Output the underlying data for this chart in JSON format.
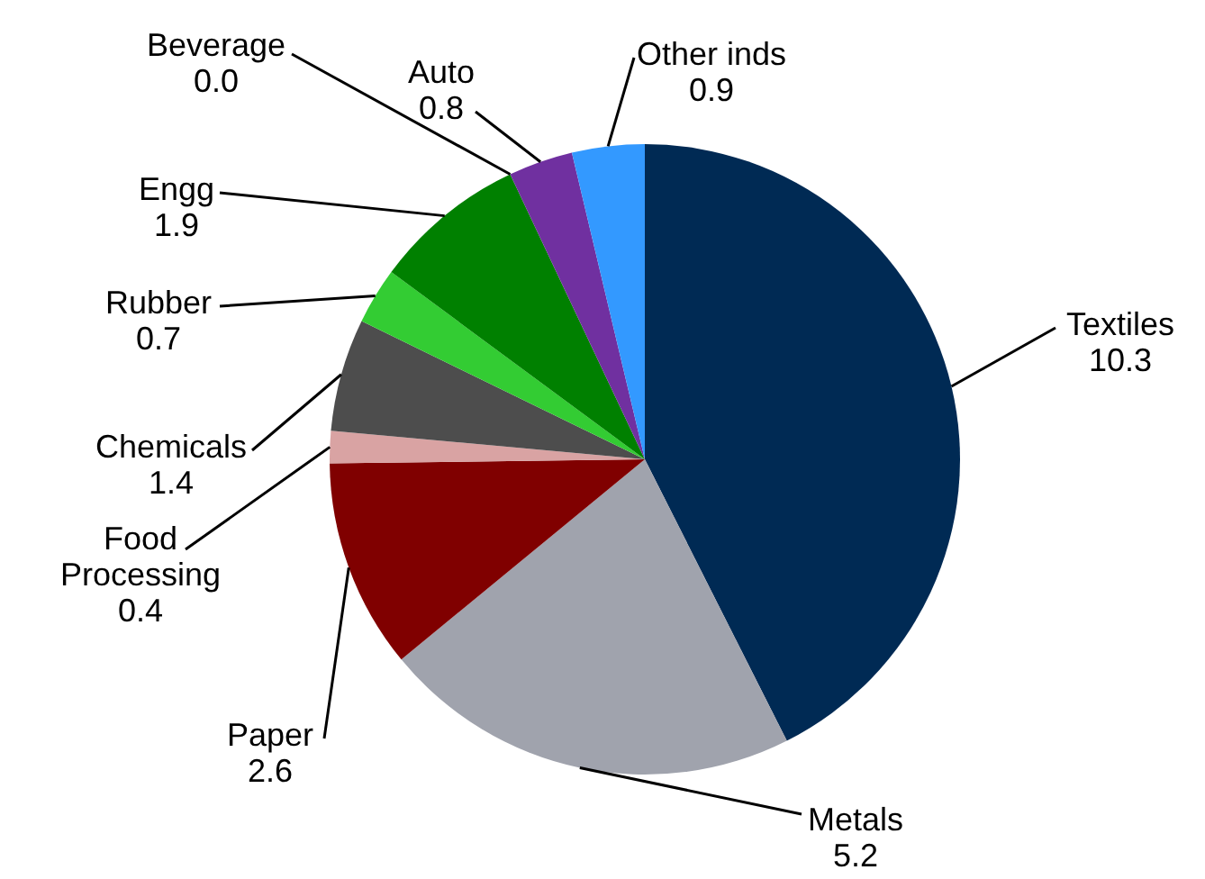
{
  "chart_data": {
    "type": "pie",
    "categories": [
      "Textiles",
      "Metals",
      "Paper",
      "Food Processing",
      "Chemicals",
      "Rubber",
      "Engg",
      "Beverage",
      "Auto",
      "Other inds"
    ],
    "values": [
      10.3,
      5.2,
      2.6,
      0.4,
      1.4,
      0.7,
      1.9,
      0.0,
      0.8,
      0.9
    ],
    "colors": [
      "#002a54",
      "#a0a3ad",
      "#800000",
      "#d9a3a3",
      "#4d4d4d",
      "#33cc33",
      "#008000",
      "#ffc000",
      "#7030a0",
      "#3399ff"
    ],
    "value_labels": [
      "10.3",
      "5.2",
      "2.6",
      "0.4",
      "1.4",
      "0.7",
      "1.9",
      "0.0",
      "0.8",
      "0.9"
    ],
    "legend": false
  }
}
